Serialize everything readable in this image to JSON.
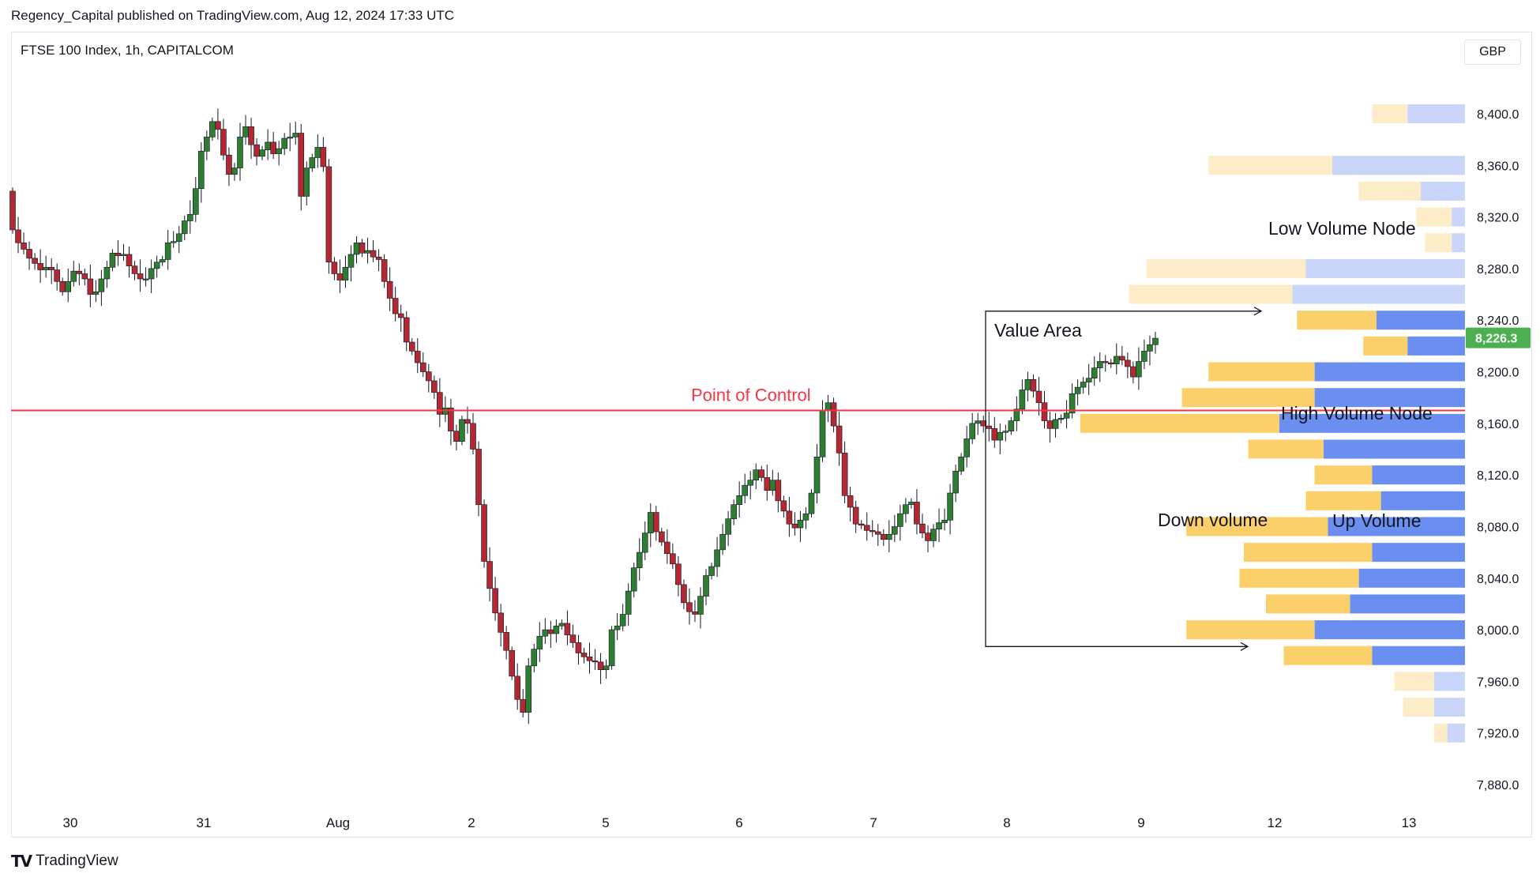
{
  "publisher_line": "Regency_Capital published on TradingView.com, Aug 12, 2024 17:33 UTC",
  "symbol_line": "FTSE 100 Index, 1h, CAPITALCOM",
  "currency_button": "GBP",
  "brand": {
    "logo": "TV",
    "name": "TradingView"
  },
  "colors": {
    "up_candle": "#26a69a",
    "down_candle": "#b22833",
    "candle_up_fill": "#2e7d32",
    "poc_line": "#f23645",
    "price_badge": "#4caf50",
    "down_volume": "#fbd06b",
    "up_volume": "#6b8ff0",
    "down_volume_faint": "#fdecc8",
    "up_volume_faint": "#c9d6fa"
  },
  "chart_data": {
    "type": "candlestick",
    "yaxis": {
      "ticks": [
        8400,
        8360,
        8320,
        8280,
        8240,
        8200,
        8160,
        8120,
        8080,
        8040,
        8000,
        7960,
        7920,
        7880
      ],
      "labels": [
        "8,400.0",
        "8,360.0",
        "8,320.0",
        "8,280.0",
        "8,240.0",
        "8,200.0",
        "8,160.0",
        "8,120.0",
        "8,080.0",
        "8,040.0",
        "8,000.0",
        "7,960.0",
        "7,920.0",
        "7,880.0"
      ],
      "range": [
        7865,
        8460
      ]
    },
    "xaxis": {
      "labels": [
        "30",
        "31",
        "Aug",
        "2",
        "5",
        "6",
        "7",
        "8",
        "9",
        "12",
        "13"
      ],
      "range": [
        0,
        109
      ]
    },
    "last_price": 8226.3,
    "last_price_label": "8,226.3",
    "candles": [],
    "point_of_control": {
      "price": 8170,
      "label": "Point of Control"
    },
    "volume_profile": [
      {
        "price": 8400,
        "down": 0.8,
        "up": 1.3,
        "faint": true
      },
      {
        "price": 8360,
        "down": 2.8,
        "up": 3.0,
        "faint": true
      },
      {
        "price": 8340,
        "down": 1.4,
        "up": 1.0,
        "faint": true
      },
      {
        "price": 8320,
        "down": 0.8,
        "up": 0.3,
        "faint": true
      },
      {
        "price": 8300,
        "down": 0.6,
        "up": 0.3,
        "faint": true
      },
      {
        "price": 8280,
        "down": 3.6,
        "up": 3.6,
        "faint": true
      },
      {
        "price": 8260,
        "down": 3.7,
        "up": 3.9,
        "faint": true
      },
      {
        "price": 8240,
        "down": 1.8,
        "up": 2.0,
        "faint": false
      },
      {
        "price": 8220,
        "down": 1.0,
        "up": 1.3,
        "faint": false
      },
      {
        "price": 8200,
        "down": 2.4,
        "up": 3.4,
        "faint": false
      },
      {
        "price": 8180,
        "down": 3.0,
        "up": 3.4,
        "faint": false
      },
      {
        "price": 8160,
        "down": 4.5,
        "up": 4.2,
        "faint": false
      },
      {
        "price": 8140,
        "down": 1.7,
        "up": 3.2,
        "faint": false
      },
      {
        "price": 8120,
        "down": 1.3,
        "up": 2.1,
        "faint": false
      },
      {
        "price": 8100,
        "down": 1.7,
        "up": 1.9,
        "faint": false
      },
      {
        "price": 8080,
        "down": 3.2,
        "up": 3.1,
        "faint": false
      },
      {
        "price": 8060,
        "down": 2.9,
        "up": 2.1,
        "faint": false
      },
      {
        "price": 8040,
        "down": 2.7,
        "up": 2.4,
        "faint": false
      },
      {
        "price": 8020,
        "down": 1.9,
        "up": 2.6,
        "faint": false
      },
      {
        "price": 8000,
        "down": 2.9,
        "up": 3.4,
        "faint": false
      },
      {
        "price": 7980,
        "down": 2.0,
        "up": 2.1,
        "faint": false
      },
      {
        "price": 7960,
        "down": 0.9,
        "up": 0.7,
        "faint": true
      },
      {
        "price": 7940,
        "down": 0.7,
        "up": 0.7,
        "faint": true
      },
      {
        "price": 7920,
        "down": 0.3,
        "up": 0.4,
        "faint": true
      }
    ],
    "annotations": {
      "value_area": "Value Area",
      "low_volume_node": "Low Volume Node",
      "high_volume_node": "High Volume Node",
      "down_volume": "Down volume",
      "up_volume": "Up Volume"
    }
  }
}
